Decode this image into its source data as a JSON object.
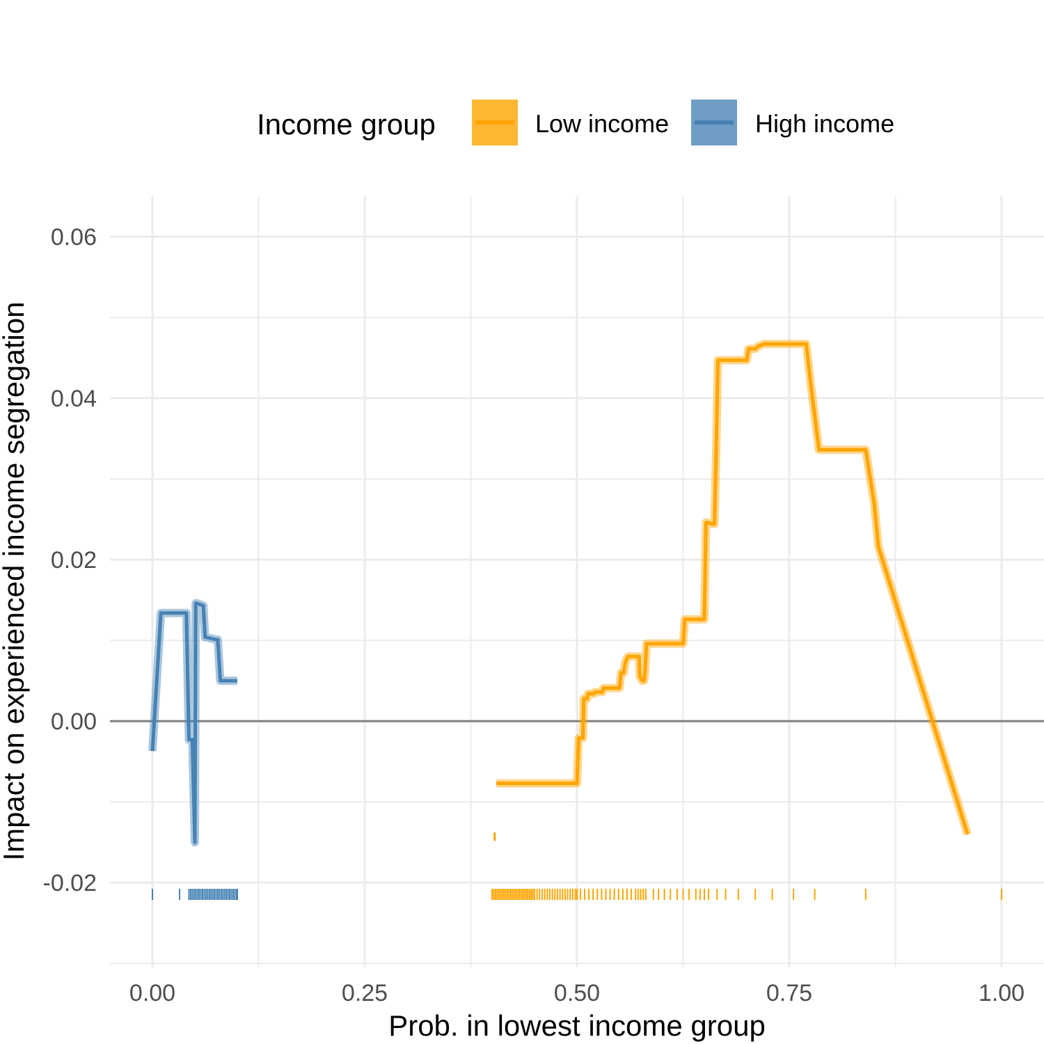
{
  "chart_data": {
    "type": "line",
    "title": "",
    "xlabel": "Prob. in lowest income group",
    "ylabel": "Impact on experienced income segregation",
    "xlim": [
      -0.05,
      1.05
    ],
    "ylim": [
      -0.0305,
      0.065
    ],
    "x_ticks": [
      0.0,
      0.25,
      0.5,
      0.75,
      1.0
    ],
    "x_tick_labels": [
      "0.00",
      "0.25",
      "0.50",
      "0.75",
      "1.00"
    ],
    "y_ticks": [
      -0.02,
      0.0,
      0.02,
      0.04,
      0.06
    ],
    "y_tick_labels": [
      "-0.02",
      "0.00",
      "0.02",
      "0.04",
      "0.06"
    ],
    "grid": true,
    "reference_line_y": 0,
    "legend": {
      "title": "Income group",
      "position": "top",
      "entries": [
        {
          "label": "Low income",
          "color": "#FFA500",
          "fill": "#FFB733"
        },
        {
          "label": "High income",
          "color": "#4682B4",
          "fill": "#6F9DC6"
        }
      ]
    },
    "series": [
      {
        "name": "High income",
        "color": "#4682B4",
        "x": [
          0.0,
          0.01,
          0.04,
          0.043,
          0.047,
          0.05,
          0.051,
          0.052,
          0.06,
          0.062,
          0.063,
          0.075,
          0.077,
          0.08,
          0.081,
          0.1
        ],
        "y": [
          -0.0037,
          0.0134,
          0.0134,
          -0.0023,
          -0.0023,
          -0.015,
          0.0146,
          0.0146,
          0.0143,
          0.0104,
          0.0104,
          0.0101,
          0.0101,
          0.005,
          0.005,
          0.005
        ],
        "rug": [
          0.0,
          0.032,
          0.043,
          0.045,
          0.047,
          0.049,
          0.051,
          0.053,
          0.055,
          0.057,
          0.059,
          0.061,
          0.063,
          0.065,
          0.067,
          0.069,
          0.071,
          0.073,
          0.075,
          0.077,
          0.079,
          0.081,
          0.083,
          0.085,
          0.087,
          0.089,
          0.091,
          0.093,
          0.095,
          0.097,
          0.099,
          0.1
        ]
      },
      {
        "name": "Low income",
        "color": "#FFA500",
        "x": [
          0.405,
          0.5,
          0.502,
          0.503,
          0.507,
          0.508,
          0.512,
          0.513,
          0.52,
          0.521,
          0.53,
          0.531,
          0.55,
          0.552,
          0.555,
          0.557,
          0.56,
          0.571,
          0.573,
          0.574,
          0.577,
          0.579,
          0.58,
          0.582,
          0.583,
          0.625,
          0.627,
          0.628,
          0.65,
          0.652,
          0.653,
          0.66,
          0.662,
          0.664,
          0.666,
          0.7,
          0.702,
          0.703,
          0.71,
          0.713,
          0.72,
          0.77,
          0.775,
          0.785,
          0.787,
          0.788,
          0.84,
          0.85,
          0.855,
          0.96
        ],
        "y": [
          -0.0077,
          -0.0077,
          -0.0021,
          -0.0021,
          -0.0021,
          0.0028,
          0.0028,
          0.0034,
          0.0034,
          0.0036,
          0.0036,
          0.0041,
          0.0041,
          0.006,
          0.006,
          0.0073,
          0.008,
          0.008,
          0.008,
          0.0055,
          0.005,
          0.005,
          0.006,
          0.0096,
          0.0096,
          0.0096,
          0.0126,
          0.0126,
          0.0126,
          0.0246,
          0.0246,
          0.0244,
          0.0244,
          0.034,
          0.0447,
          0.0447,
          0.0461,
          0.0461,
          0.0461,
          0.0464,
          0.0467,
          0.0467,
          0.042,
          0.0336,
          0.0336,
          0.0336,
          0.0336,
          0.027,
          0.0216,
          -0.014
        ],
        "rug": [
          0.4,
          0.402,
          0.404,
          0.406,
          0.408,
          0.41,
          0.412,
          0.414,
          0.416,
          0.418,
          0.42,
          0.422,
          0.424,
          0.426,
          0.428,
          0.43,
          0.432,
          0.434,
          0.436,
          0.438,
          0.44,
          0.442,
          0.444,
          0.446,
          0.448,
          0.45,
          0.453,
          0.456,
          0.459,
          0.462,
          0.465,
          0.468,
          0.471,
          0.474,
          0.477,
          0.48,
          0.483,
          0.486,
          0.489,
          0.492,
          0.495,
          0.498,
          0.5,
          0.504,
          0.509,
          0.514,
          0.519,
          0.524,
          0.529,
          0.534,
          0.539,
          0.544,
          0.549,
          0.554,
          0.559,
          0.564,
          0.569,
          0.572,
          0.575,
          0.578,
          0.581,
          0.59,
          0.596,
          0.603,
          0.61,
          0.618,
          0.625,
          0.632,
          0.64,
          0.645,
          0.65,
          0.655,
          0.665,
          0.675,
          0.69,
          0.71,
          0.73,
          0.755,
          0.78,
          0.84,
          1.0
        ]
      }
    ],
    "outlier_marks": [
      {
        "series": "Low income",
        "x": 0.403,
        "y": -0.0143
      }
    ]
  }
}
